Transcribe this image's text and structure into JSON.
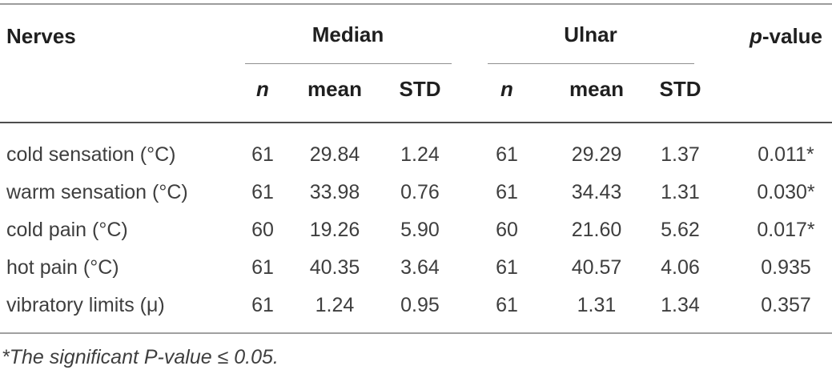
{
  "table": {
    "header": {
      "nerves": "Nerves",
      "median_group": "Median",
      "ulnar_group": "Ulnar",
      "pvalue_prefix": "p",
      "pvalue_suffix": "-value",
      "sub": {
        "n": "n",
        "mean": "mean",
        "std": "STD"
      }
    },
    "rows": [
      {
        "label": "cold sensation (°C)",
        "median_n": "61",
        "median_mean": "29.84",
        "median_std": "1.24",
        "ulnar_n": "61",
        "ulnar_mean": "29.29",
        "ulnar_std": "1.37",
        "p_value": "0.011*"
      },
      {
        "label": "warm sensation (°C)",
        "median_n": "61",
        "median_mean": "33.98",
        "median_std": "0.76",
        "ulnar_n": "61",
        "ulnar_mean": "34.43",
        "ulnar_std": "1.31",
        "p_value": "0.030*"
      },
      {
        "label": "cold pain (°C)",
        "median_n": "60",
        "median_mean": "19.26",
        "median_std": "5.90",
        "ulnar_n": "60",
        "ulnar_mean": "21.60",
        "ulnar_std": "5.62",
        "p_value": "0.017*"
      },
      {
        "label": "hot pain (°C)",
        "median_n": "61",
        "median_mean": "40.35",
        "median_std": "3.64",
        "ulnar_n": "61",
        "ulnar_mean": "40.57",
        "ulnar_std": "4.06",
        "p_value": "0.935"
      },
      {
        "label": "vibratory limits (μ)",
        "median_n": "61",
        "median_mean": "1.24",
        "median_std": "0.95",
        "ulnar_n": "61",
        "ulnar_mean": "1.31",
        "ulnar_std": "1.34",
        "p_value": "0.357"
      }
    ],
    "footnote": "*The significant P-value ≤ 0.05."
  },
  "colors": {
    "outer_rule": "#9c9c9c",
    "header_rule": "#4d4d4d",
    "group_underline": "#8f8f8f",
    "header_text": "#1f1f1f",
    "body_text": "#3e3e3e"
  }
}
